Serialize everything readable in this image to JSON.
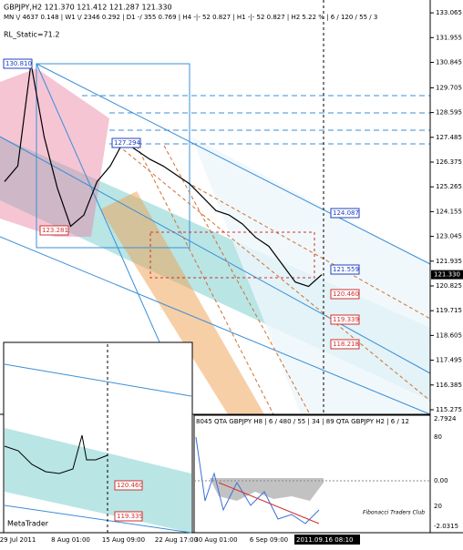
{
  "chart_data": {
    "type": "line",
    "title": "GBPJPY,H2  121.370 121.412 121.287 121.330",
    "subtitle": "MN \\/ 4637   0.148  |  W1 \\/ 2346   0.292  |  D1 -/ 355   0.769  |  H4 -|- 52   0.827  |  H1 -|- 52   0.827  |  H2  5.22 %  |  6 / 120 / 55 / 3",
    "indicator": "RL_Static=71.2",
    "categories": [
      null,
      "29 Jul 2011",
      null,
      null,
      null,
      "8 Aug 01:00",
      null,
      null,
      null,
      "15 Aug 09:00",
      null,
      null,
      null,
      "22 Aug 17:00",
      null,
      null,
      "30 Aug 01:00",
      null,
      null,
      null,
      "6 Sep 09:00",
      null,
      null,
      null,
      "2011.09.16 08:10"
    ],
    "values": [
      125.5,
      126.2,
      130.8,
      127.5,
      125.2,
      123.5,
      124.0,
      125.5,
      126.2,
      127.3,
      126.9,
      126.5,
      126.2,
      125.8,
      125.4,
      124.8,
      124.2,
      124.0,
      123.6,
      123.0,
      122.6,
      121.8,
      121.0,
      120.8,
      121.33
    ],
    "color": "#000000",
    "ylim": [
      115.07,
      133.64
    ],
    "yticks": [
      133.065,
      131.955,
      130.845,
      129.705,
      128.595,
      127.485,
      126.375,
      125.265,
      124.155,
      123.045,
      121.935,
      120.825,
      119.715,
      118.605,
      117.495,
      116.385,
      115.275
    ],
    "current_price": "121.330",
    "price_labels": [
      "130.810",
      "127.294",
      "124.087",
      "121.559",
      "123.281",
      "120.460",
      "119.339",
      "118.218"
    ],
    "oscillator_title": "8045  QTA GBPJPY H8 | 6 / 480 / 55 | 34 | 89   QTA GBPJPY H2 | 6 / 12",
    "oscillator_labels": [
      "2.7924",
      "80",
      "0.00",
      "20",
      "-2.0315"
    ],
    "inset_labels": [
      "120.460",
      "119.339",
      "MetaTrader"
    ],
    "watermark": "Fibonacci Traders Club"
  }
}
